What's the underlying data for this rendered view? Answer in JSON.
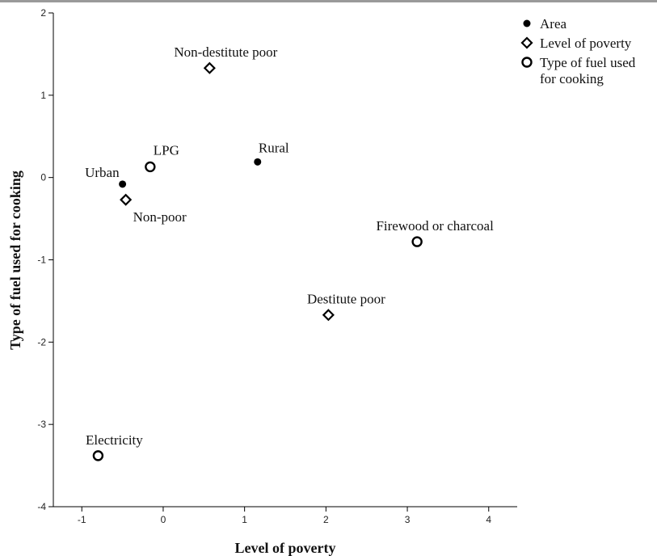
{
  "chart_data": {
    "type": "scatter",
    "xlabel": "Level of poverty",
    "ylabel": "Type of fuel used for cooking",
    "xlim": [
      -1.35,
      4.35
    ],
    "ylim": [
      -4,
      2
    ],
    "xticks": [
      -1,
      0,
      1,
      2,
      3,
      4
    ],
    "yticks": [
      2,
      1,
      0,
      -1,
      -2,
      -3,
      -4
    ],
    "legend_position": "top-right",
    "series": [
      {
        "name": "Area",
        "marker": "filled-circle",
        "points": [
          {
            "label": "Urban",
            "x": -0.5,
            "y": -0.08
          },
          {
            "label": "Rural",
            "x": 1.16,
            "y": 0.19
          }
        ]
      },
      {
        "name": "Level of poverty",
        "marker": "diamond",
        "points": [
          {
            "label": "Non-destitute poor",
            "x": 0.57,
            "y": 1.33
          },
          {
            "label": "Non-poor",
            "x": -0.46,
            "y": -0.27
          },
          {
            "label": "Destitute poor",
            "x": 2.03,
            "y": -1.67
          }
        ]
      },
      {
        "name": "Type of fuel used for cooking",
        "legend_lines": [
          "Type of fuel used",
          "for cooking"
        ],
        "marker": "open-circle",
        "points": [
          {
            "label": "LPG",
            "x": -0.16,
            "y": 0.13
          },
          {
            "label": "Firewood or charcoal",
            "x": 3.12,
            "y": -0.78
          },
          {
            "label": "Electricity",
            "x": -0.8,
            "y": -3.38
          }
        ]
      }
    ]
  }
}
